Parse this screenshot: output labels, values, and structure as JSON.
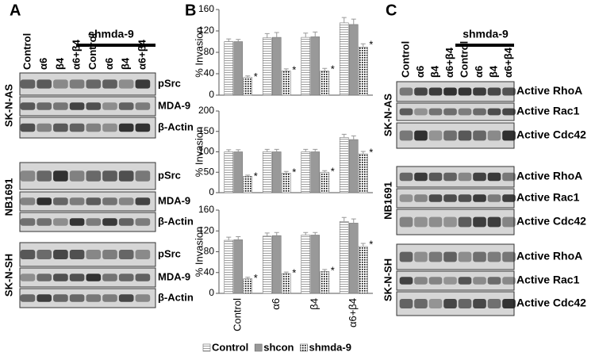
{
  "panels": [
    {
      "label": "A",
      "lanes": [
        "Control",
        "α6",
        "β4",
        "α6+β4",
        "Control",
        "α6",
        "β4",
        "α6+β4"
      ],
      "group_label": "shmda-9",
      "cell_lines": [
        {
          "name": "SK-N-AS",
          "rows": [
            "pSrc",
            "MDA-9",
            "β-Actin"
          ]
        },
        {
          "name": "NB1691",
          "rows": [
            "pSrc",
            "MDA-9",
            "β-Actin"
          ]
        },
        {
          "name": "SK-N-SH",
          "rows": [
            "pSrc",
            "MDA-9",
            "β-Actin"
          ]
        }
      ]
    },
    {
      "label": "B"
    },
    {
      "label": "C",
      "lanes": [
        "Control",
        "α6",
        "β4",
        "α6+β4",
        "Control",
        "α6",
        "β4",
        "α6+β4"
      ],
      "group_label": "shmda-9",
      "cell_lines": [
        {
          "name": "SK-N-AS",
          "rows": [
            "Active RhoA",
            "Active Rac1",
            "Active Cdc42"
          ]
        },
        {
          "name": "NB1691",
          "rows": [
            "Active RhoA",
            "Active Rac1",
            "Active Cdc42"
          ]
        },
        {
          "name": "SK-N-SH",
          "rows": [
            "Active RhoA",
            "Active Rac1",
            "Active Cdc42"
          ]
        }
      ]
    }
  ],
  "chart_data": [
    {
      "type": "bar",
      "y_label": "% Invasion",
      "annotation": "*",
      "categories": [
        null,
        null,
        null,
        null
      ],
      "ylim": [
        0,
        160
      ],
      "yticks": [
        0,
        40,
        80,
        120,
        160
      ],
      "series": [
        {
          "color": "#888888",
          "pattern": "hlines",
          "values": [
            100,
            107,
            108,
            135
          ],
          "errors": [
            5,
            8,
            8,
            10
          ]
        },
        {
          "color": "#999999",
          "pattern": "solid",
          "values": [
            100,
            108,
            109,
            132
          ],
          "errors": [
            4,
            9,
            9,
            10
          ]
        },
        {
          "color": "#000000",
          "pattern": "dots",
          "values": [
            33,
            45,
            45,
            90
          ],
          "errors": [
            3,
            4,
            5,
            6
          ]
        }
      ]
    },
    {
      "type": "bar",
      "y_label": "% Invasion",
      "annotation": "*",
      "categories": [
        null,
        null,
        null,
        null
      ],
      "ylim": [
        0,
        200
      ],
      "yticks": [
        0,
        50,
        100,
        150,
        200
      ],
      "series": [
        {
          "color": "#888888",
          "pattern": "hlines",
          "values": [
            100,
            100,
            100,
            135
          ],
          "errors": [
            5,
            6,
            6,
            8
          ]
        },
        {
          "color": "#999999",
          "pattern": "solid",
          "values": [
            100,
            100,
            100,
            130
          ],
          "errors": [
            5,
            6,
            6,
            9
          ]
        },
        {
          "color": "#000000",
          "pattern": "dots",
          "values": [
            40,
            48,
            50,
            95
          ],
          "errors": [
            3,
            4,
            4,
            6
          ]
        }
      ]
    },
    {
      "type": "bar",
      "y_label": "% Invasion",
      "annotation": "*",
      "categories": [
        "Control",
        "α6",
        "β4",
        "α6+β4"
      ],
      "ylim": [
        0,
        160
      ],
      "yticks": [
        0,
        40,
        80,
        120,
        160
      ],
      "legend": "bottom",
      "series": [
        {
          "name": "Control",
          "color": "#888888",
          "pattern": "hlines",
          "values": [
            102,
            110,
            112,
            138
          ],
          "errors": [
            6,
            6,
            5,
            8
          ]
        },
        {
          "name": "shcon",
          "color": "#999999",
          "pattern": "solid",
          "values": [
            103,
            111,
            112,
            135
          ],
          "errors": [
            6,
            6,
            5,
            8
          ]
        },
        {
          "name": "shmda-9",
          "color": "#000000",
          "pattern": "dots",
          "values": [
            28,
            38,
            42,
            90
          ],
          "errors": [
            3,
            3,
            4,
            6
          ]
        }
      ]
    }
  ]
}
